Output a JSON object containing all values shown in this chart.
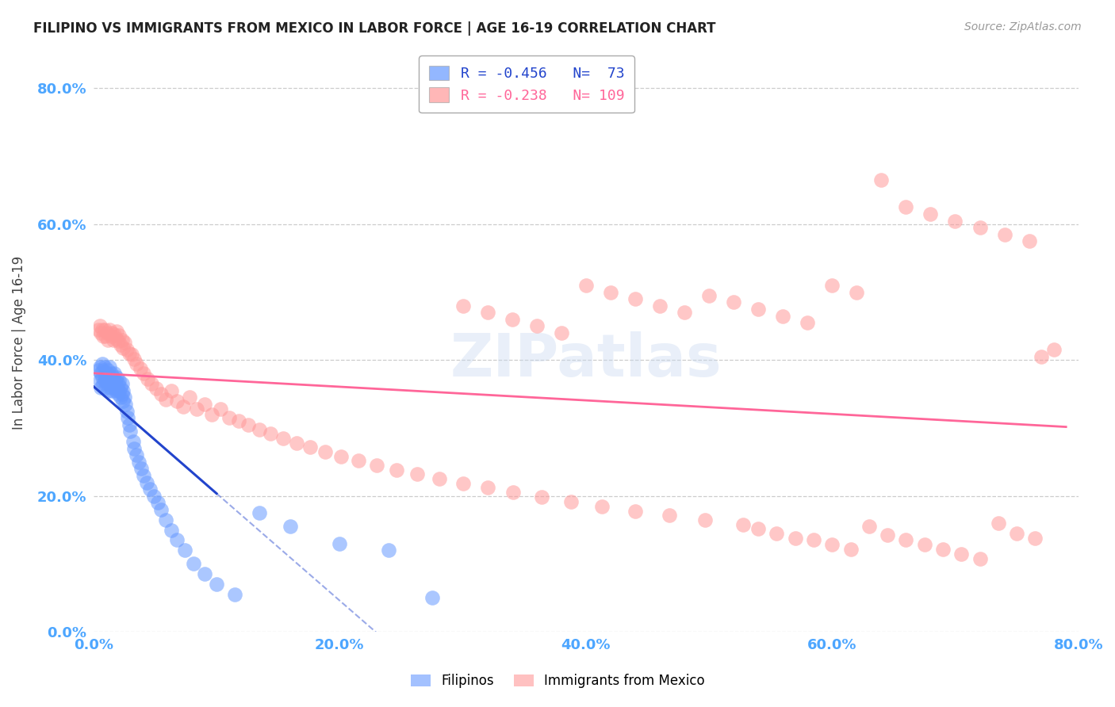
{
  "title": "FILIPINO VS IMMIGRANTS FROM MEXICO IN LABOR FORCE | AGE 16-19 CORRELATION CHART",
  "source": "Source: ZipAtlas.com",
  "ylabel": "In Labor Force | Age 16-19",
  "xlim": [
    0.0,
    0.8
  ],
  "ylim": [
    0.0,
    0.85
  ],
  "x_ticks": [
    0.0,
    0.2,
    0.4,
    0.6,
    0.8
  ],
  "y_ticks": [
    0.0,
    0.2,
    0.4,
    0.6,
    0.8
  ],
  "tick_color": "#4da6ff",
  "grid_color": "#cccccc",
  "background": "#ffffff",
  "legend_blue_label": "Filipinos",
  "legend_pink_label": "Immigrants from Mexico",
  "blue_color": "#6699ff",
  "pink_color": "#ff9999",
  "blue_line_color": "#2244cc",
  "pink_line_color": "#ff6699",
  "filipinos_x": [
    0.004,
    0.005,
    0.005,
    0.006,
    0.006,
    0.007,
    0.007,
    0.008,
    0.008,
    0.009,
    0.009,
    0.01,
    0.01,
    0.011,
    0.011,
    0.012,
    0.012,
    0.012,
    0.013,
    0.013,
    0.013,
    0.014,
    0.014,
    0.015,
    0.015,
    0.016,
    0.016,
    0.017,
    0.017,
    0.018,
    0.018,
    0.019,
    0.019,
    0.02,
    0.02,
    0.021,
    0.021,
    0.022,
    0.022,
    0.023,
    0.023,
    0.024,
    0.024,
    0.025,
    0.026,
    0.027,
    0.028,
    0.029,
    0.03,
    0.032,
    0.033,
    0.035,
    0.037,
    0.039,
    0.041,
    0.043,
    0.046,
    0.049,
    0.052,
    0.055,
    0.059,
    0.063,
    0.068,
    0.074,
    0.081,
    0.09,
    0.1,
    0.115,
    0.135,
    0.16,
    0.2,
    0.24,
    0.275
  ],
  "filipinos_y": [
    0.385,
    0.37,
    0.39,
    0.36,
    0.38,
    0.375,
    0.395,
    0.365,
    0.385,
    0.37,
    0.39,
    0.375,
    0.36,
    0.38,
    0.365,
    0.37,
    0.355,
    0.385,
    0.365,
    0.375,
    0.39,
    0.36,
    0.38,
    0.37,
    0.355,
    0.365,
    0.375,
    0.36,
    0.38,
    0.355,
    0.37,
    0.36,
    0.375,
    0.35,
    0.365,
    0.355,
    0.37,
    0.345,
    0.36,
    0.35,
    0.365,
    0.34,
    0.355,
    0.345,
    0.335,
    0.325,
    0.315,
    0.305,
    0.295,
    0.28,
    0.27,
    0.26,
    0.25,
    0.24,
    0.23,
    0.22,
    0.21,
    0.2,
    0.19,
    0.18,
    0.165,
    0.15,
    0.135,
    0.12,
    0.1,
    0.085,
    0.07,
    0.055,
    0.175,
    0.155,
    0.13,
    0.12,
    0.05
  ],
  "mexico_x": [
    0.004,
    0.005,
    0.006,
    0.007,
    0.008,
    0.009,
    0.01,
    0.011,
    0.012,
    0.013,
    0.014,
    0.015,
    0.016,
    0.017,
    0.018,
    0.019,
    0.02,
    0.021,
    0.022,
    0.023,
    0.024,
    0.025,
    0.027,
    0.029,
    0.031,
    0.033,
    0.035,
    0.038,
    0.041,
    0.044,
    0.047,
    0.051,
    0.055,
    0.059,
    0.063,
    0.068,
    0.073,
    0.078,
    0.084,
    0.09,
    0.096,
    0.103,
    0.11,
    0.118,
    0.126,
    0.135,
    0.144,
    0.154,
    0.165,
    0.176,
    0.188,
    0.201,
    0.215,
    0.23,
    0.246,
    0.263,
    0.281,
    0.3,
    0.32,
    0.341,
    0.364,
    0.388,
    0.413,
    0.44,
    0.468,
    0.497,
    0.528,
    0.54,
    0.555,
    0.57,
    0.585,
    0.6,
    0.615,
    0.63,
    0.645,
    0.66,
    0.675,
    0.69,
    0.705,
    0.72,
    0.735,
    0.75,
    0.765,
    0.3,
    0.32,
    0.34,
    0.36,
    0.38,
    0.4,
    0.42,
    0.44,
    0.46,
    0.48,
    0.5,
    0.52,
    0.54,
    0.56,
    0.58,
    0.6,
    0.62,
    0.64,
    0.66,
    0.68,
    0.7,
    0.72,
    0.74,
    0.76,
    0.78,
    0.77
  ],
  "mexico_y": [
    0.445,
    0.45,
    0.44,
    0.445,
    0.435,
    0.445,
    0.435,
    0.44,
    0.43,
    0.445,
    0.435,
    0.44,
    0.43,
    0.438,
    0.432,
    0.442,
    0.428,
    0.436,
    0.422,
    0.43,
    0.418,
    0.426,
    0.415,
    0.41,
    0.408,
    0.402,
    0.395,
    0.388,
    0.38,
    0.372,
    0.365,
    0.358,
    0.35,
    0.342,
    0.355,
    0.34,
    0.332,
    0.345,
    0.328,
    0.335,
    0.32,
    0.328,
    0.315,
    0.31,
    0.305,
    0.298,
    0.292,
    0.285,
    0.278,
    0.272,
    0.265,
    0.258,
    0.252,
    0.245,
    0.238,
    0.232,
    0.225,
    0.218,
    0.212,
    0.205,
    0.198,
    0.192,
    0.185,
    0.178,
    0.172,
    0.165,
    0.158,
    0.152,
    0.145,
    0.138,
    0.135,
    0.128,
    0.122,
    0.155,
    0.142,
    0.135,
    0.128,
    0.122,
    0.115,
    0.108,
    0.16,
    0.145,
    0.138,
    0.48,
    0.47,
    0.46,
    0.45,
    0.44,
    0.51,
    0.5,
    0.49,
    0.48,
    0.47,
    0.495,
    0.485,
    0.475,
    0.465,
    0.455,
    0.51,
    0.5,
    0.665,
    0.625,
    0.615,
    0.605,
    0.595,
    0.585,
    0.575,
    0.415,
    0.405
  ]
}
